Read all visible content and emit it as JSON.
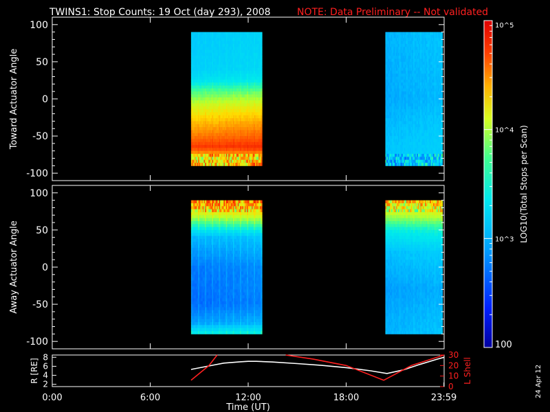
{
  "title": "TWINS1: Stop Counts: 19 Oct (day 293), 2008",
  "note": "NOTE: Data Preliminary -- Not validated",
  "date_stamp": "24 Apr 12",
  "colors": {
    "background": "#000000",
    "axes": "#ffffff",
    "note": "#ff2020",
    "lshell": "#ff2020",
    "radius": "#ffffff"
  },
  "colorbar": {
    "label": "LOG10(Total Stops per Scan)",
    "scale": "log",
    "range": [
      100,
      100000
    ],
    "ticks": [
      "100",
      "10^3",
      "10^4",
      "10^5"
    ],
    "tick_values": [
      100,
      1000,
      10000,
      100000
    ],
    "colormap": "rainbow (blue to red)"
  },
  "chart_data": [
    {
      "id": "toward",
      "type": "heatmap",
      "ylabel": "Toward Actuator Angle",
      "ylim": [
        -110,
        110
      ],
      "yticks": [
        100,
        50,
        0,
        -50,
        -100
      ],
      "xlim": [
        0,
        24
      ],
      "data_blocks": [
        {
          "t_start": 8.5,
          "t_end": 12.85,
          "angle_range": [
            -90,
            90
          ]
        },
        {
          "t_start": 20.4,
          "t_end": 23.9,
          "angle_range": [
            -90,
            90
          ]
        }
      ],
      "profile_block1": [
        {
          "angle": 90,
          "log_counts": 3.0
        },
        {
          "angle": 40,
          "log_counts": 3.05
        },
        {
          "angle": 25,
          "log_counts": 3.2
        },
        {
          "angle": 10,
          "log_counts": 3.55
        },
        {
          "angle": -10,
          "log_counts": 3.9
        },
        {
          "angle": -30,
          "log_counts": 4.15
        },
        {
          "angle": -50,
          "log_counts": 4.4
        },
        {
          "angle": -65,
          "log_counts": 4.65
        },
        {
          "angle": -80,
          "log_counts": 4.0
        },
        {
          "angle": -90,
          "log_counts": 4.2
        }
      ],
      "profile_block2": [
        {
          "angle": 90,
          "log_counts": 2.9
        },
        {
          "angle": 0,
          "log_counts": 2.85
        },
        {
          "angle": -50,
          "log_counts": 2.95
        },
        {
          "angle": -90,
          "log_counts": 3.0
        }
      ]
    },
    {
      "id": "away",
      "type": "heatmap",
      "ylabel": "Away Actuator Angle",
      "ylim": [
        -110,
        110
      ],
      "yticks": [
        100,
        50,
        0,
        -50,
        -100
      ],
      "xlim": [
        0,
        24
      ],
      "data_blocks": [
        {
          "t_start": 8.5,
          "t_end": 12.85,
          "angle_range": [
            -90,
            90
          ]
        },
        {
          "t_start": 20.4,
          "t_end": 23.9,
          "angle_range": [
            -90,
            90
          ]
        }
      ],
      "profile_block1": [
        {
          "angle": 90,
          "log_counts": 4.3
        },
        {
          "angle": 75,
          "log_counts": 4.0
        },
        {
          "angle": 60,
          "log_counts": 3.55
        },
        {
          "angle": 40,
          "log_counts": 2.9
        },
        {
          "angle": 0,
          "log_counts": 2.65
        },
        {
          "angle": -50,
          "log_counts": 2.6
        },
        {
          "angle": -75,
          "log_counts": 2.8
        },
        {
          "angle": -90,
          "log_counts": 3.3
        }
      ],
      "profile_block2": [
        {
          "angle": 90,
          "log_counts": 4.1
        },
        {
          "angle": 70,
          "log_counts": 3.8
        },
        {
          "angle": 50,
          "log_counts": 3.3
        },
        {
          "angle": 20,
          "log_counts": 2.95
        },
        {
          "angle": -30,
          "log_counts": 2.8
        },
        {
          "angle": -90,
          "log_counts": 2.9
        }
      ]
    },
    {
      "id": "orbit",
      "type": "line",
      "xlabel": "Time (UT)",
      "xlim": [
        0,
        24
      ],
      "xtick_values": [
        0,
        6,
        12,
        18,
        23.983
      ],
      "xticks": [
        "0:00",
        "6:00",
        "12:00",
        "18:00",
        "23:59"
      ],
      "left_axis": {
        "label": "R [RE]",
        "ylim": [
          1.5,
          8.5
        ],
        "yticks": [
          2,
          4,
          6,
          8
        ]
      },
      "right_axis": {
        "label": "L Shell",
        "ylim": [
          0,
          30
        ],
        "yticks": [
          0,
          10,
          20,
          30
        ]
      },
      "series": [
        {
          "axis": "left",
          "x": [
            8.5,
            9.5,
            10.5,
            11.5,
            12.0,
            12.5,
            13.5,
            15.0,
            16.5,
            18.0,
            19.5,
            20.5,
            21.5,
            22.5,
            23.5,
            24.0
          ],
          "y": [
            5.3,
            6.0,
            6.7,
            7.0,
            7.1,
            7.1,
            6.95,
            6.6,
            6.2,
            5.7,
            5.0,
            4.4,
            5.2,
            6.4,
            7.5,
            8.0
          ]
        },
        {
          "axis": "right",
          "x": [
            8.5,
            9.6,
            10.1
          ],
          "y": [
            6,
            20,
            30
          ]
        },
        {
          "axis": "right",
          "x": [
            14.3,
            16.0,
            18.0,
            20.3,
            22.0,
            24.0
          ],
          "y": [
            30,
            26,
            20,
            6,
            20,
            30
          ]
        }
      ]
    }
  ]
}
